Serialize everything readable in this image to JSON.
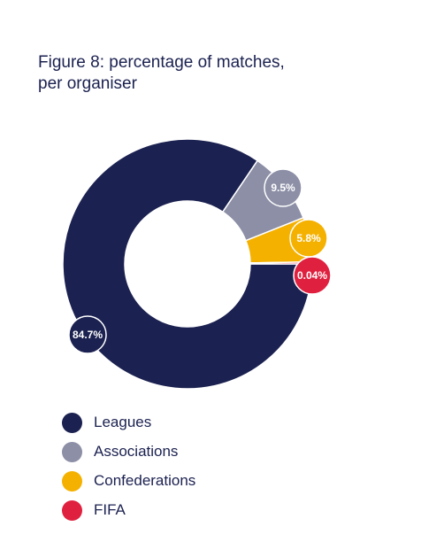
{
  "chart_data": {
    "type": "pie",
    "title": "Figure 8: percentage of matches,\nper organiser",
    "categories": [
      "Leagues",
      "Associations",
      "Confederations",
      "FIFA"
    ],
    "values": [
      84.7,
      9.5,
      5.8,
      0.04
    ],
    "data_labels": [
      "84.7%",
      "9.5%",
      "5.8%",
      "0.04%"
    ],
    "colors": [
      "#1b2150",
      "#8c8fa6",
      "#f5b100",
      "#e0203f"
    ],
    "donut": true,
    "legend_position": "bottom-left"
  }
}
